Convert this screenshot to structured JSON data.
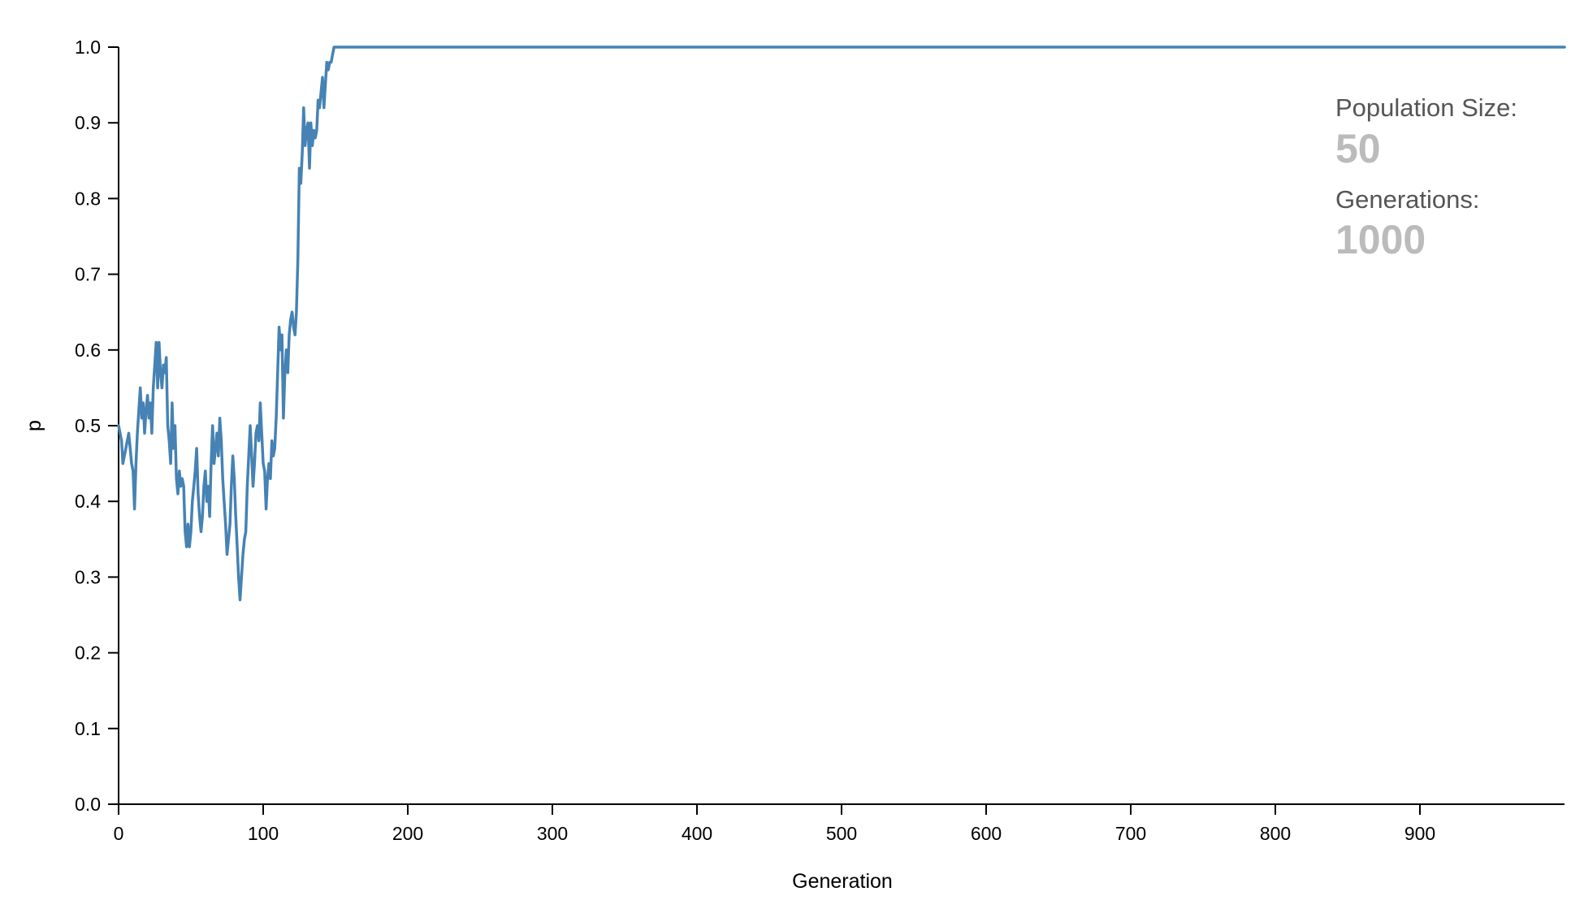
{
  "info_panel": {
    "population_label": "Population Size:",
    "population_value": "50",
    "generations_label": "Generations:",
    "generations_value": "1000"
  },
  "colors": {
    "line": "#4682b4",
    "axis": "#000000",
    "info_label": "#555555",
    "info_value": "#bbbbbb"
  },
  "chart_data": {
    "type": "line",
    "title": "",
    "xlabel": "Generation",
    "ylabel": "p",
    "xlim": [
      0,
      1000
    ],
    "ylim": [
      0,
      1
    ],
    "grid": false,
    "legend": "none",
    "x_ticks": [
      0,
      100,
      200,
      300,
      400,
      500,
      600,
      700,
      800,
      900
    ],
    "x_tick_labels": [
      "0",
      "100",
      "200",
      "300",
      "400",
      "500",
      "600",
      "700",
      "800",
      "900"
    ],
    "y_ticks": [
      0,
      0.1,
      0.2,
      0.3,
      0.4,
      0.5,
      0.6,
      0.7,
      0.8,
      0.9,
      1.0
    ],
    "y_tick_labels": [
      "0.0",
      "0.1",
      "0.2",
      "0.3",
      "0.4",
      "0.5",
      "0.6",
      "0.7",
      "0.8",
      "0.9",
      "1.0"
    ],
    "series": [
      {
        "points": [
          [
            0,
            0.5
          ],
          [
            2,
            0.48
          ],
          [
            3,
            0.45
          ],
          [
            5,
            0.47
          ],
          [
            7,
            0.49
          ],
          [
            9,
            0.45
          ],
          [
            10,
            0.44
          ],
          [
            11,
            0.39
          ],
          [
            12,
            0.45
          ],
          [
            13,
            0.49
          ],
          [
            14,
            0.52
          ],
          [
            15,
            0.55
          ],
          [
            16,
            0.51
          ],
          [
            17,
            0.53
          ],
          [
            18,
            0.49
          ],
          [
            19,
            0.52
          ],
          [
            20,
            0.54
          ],
          [
            21,
            0.51
          ],
          [
            22,
            0.53
          ],
          [
            23,
            0.49
          ],
          [
            24,
            0.55
          ],
          [
            25,
            0.58
          ],
          [
            26,
            0.61
          ],
          [
            27,
            0.55
          ],
          [
            28,
            0.61
          ],
          [
            29,
            0.57
          ],
          [
            30,
            0.55
          ],
          [
            31,
            0.58
          ],
          [
            32,
            0.57
          ],
          [
            33,
            0.59
          ],
          [
            34,
            0.5
          ],
          [
            35,
            0.48
          ],
          [
            36,
            0.45
          ],
          [
            37,
            0.53
          ],
          [
            38,
            0.47
          ],
          [
            39,
            0.5
          ],
          [
            40,
            0.43
          ],
          [
            41,
            0.41
          ],
          [
            42,
            0.44
          ],
          [
            43,
            0.42
          ],
          [
            44,
            0.43
          ],
          [
            45,
            0.42
          ],
          [
            46,
            0.36
          ],
          [
            47,
            0.34
          ],
          [
            48,
            0.37
          ],
          [
            49,
            0.34
          ],
          [
            50,
            0.36
          ],
          [
            51,
            0.4
          ],
          [
            52,
            0.42
          ],
          [
            53,
            0.44
          ],
          [
            54,
            0.47
          ],
          [
            55,
            0.41
          ],
          [
            56,
            0.38
          ],
          [
            57,
            0.36
          ],
          [
            58,
            0.38
          ],
          [
            59,
            0.42
          ],
          [
            60,
            0.44
          ],
          [
            61,
            0.4
          ],
          [
            62,
            0.42
          ],
          [
            63,
            0.38
          ],
          [
            64,
            0.45
          ],
          [
            65,
            0.5
          ],
          [
            66,
            0.45
          ],
          [
            67,
            0.47
          ],
          [
            68,
            0.49
          ],
          [
            69,
            0.46
          ],
          [
            70,
            0.51
          ],
          [
            71,
            0.48
          ],
          [
            72,
            0.43
          ],
          [
            73,
            0.4
          ],
          [
            74,
            0.37
          ],
          [
            75,
            0.33
          ],
          [
            76,
            0.35
          ],
          [
            77,
            0.37
          ],
          [
            78,
            0.42
          ],
          [
            79,
            0.46
          ],
          [
            80,
            0.43
          ],
          [
            81,
            0.38
          ],
          [
            82,
            0.34
          ],
          [
            83,
            0.3
          ],
          [
            84,
            0.27
          ],
          [
            85,
            0.3
          ],
          [
            86,
            0.33
          ],
          [
            87,
            0.35
          ],
          [
            88,
            0.36
          ],
          [
            89,
            0.42
          ],
          [
            90,
            0.46
          ],
          [
            91,
            0.5
          ],
          [
            92,
            0.46
          ],
          [
            93,
            0.42
          ],
          [
            94,
            0.45
          ],
          [
            95,
            0.49
          ],
          [
            96,
            0.5
          ],
          [
            97,
            0.48
          ],
          [
            98,
            0.53
          ],
          [
            99,
            0.49
          ],
          [
            100,
            0.45
          ],
          [
            101,
            0.44
          ],
          [
            102,
            0.39
          ],
          [
            103,
            0.43
          ],
          [
            104,
            0.45
          ],
          [
            105,
            0.43
          ],
          [
            106,
            0.48
          ],
          [
            107,
            0.46
          ],
          [
            108,
            0.47
          ],
          [
            109,
            0.51
          ],
          [
            110,
            0.57
          ],
          [
            111,
            0.63
          ],
          [
            112,
            0.6
          ],
          [
            113,
            0.62
          ],
          [
            114,
            0.51
          ],
          [
            115,
            0.57
          ],
          [
            116,
            0.6
          ],
          [
            117,
            0.57
          ],
          [
            118,
            0.62
          ],
          [
            119,
            0.64
          ],
          [
            120,
            0.65
          ],
          [
            121,
            0.63
          ],
          [
            122,
            0.62
          ],
          [
            123,
            0.65
          ],
          [
            124,
            0.72
          ],
          [
            125,
            0.84
          ],
          [
            126,
            0.82
          ],
          [
            127,
            0.86
          ],
          [
            128,
            0.92
          ],
          [
            129,
            0.87
          ],
          [
            130,
            0.89
          ],
          [
            131,
            0.9
          ],
          [
            132,
            0.84
          ],
          [
            133,
            0.9
          ],
          [
            134,
            0.87
          ],
          [
            135,
            0.89
          ],
          [
            136,
            0.88
          ],
          [
            137,
            0.89
          ],
          [
            138,
            0.93
          ],
          [
            139,
            0.92
          ],
          [
            140,
            0.94
          ],
          [
            141,
            0.96
          ],
          [
            142,
            0.92
          ],
          [
            143,
            0.95
          ],
          [
            144,
            0.98
          ],
          [
            145,
            0.97
          ],
          [
            146,
            0.98
          ],
          [
            147,
            0.98
          ],
          [
            148,
            0.99
          ],
          [
            149,
            1.0
          ],
          [
            150,
            1.0
          ],
          [
            1000,
            1.0
          ]
        ]
      }
    ]
  }
}
